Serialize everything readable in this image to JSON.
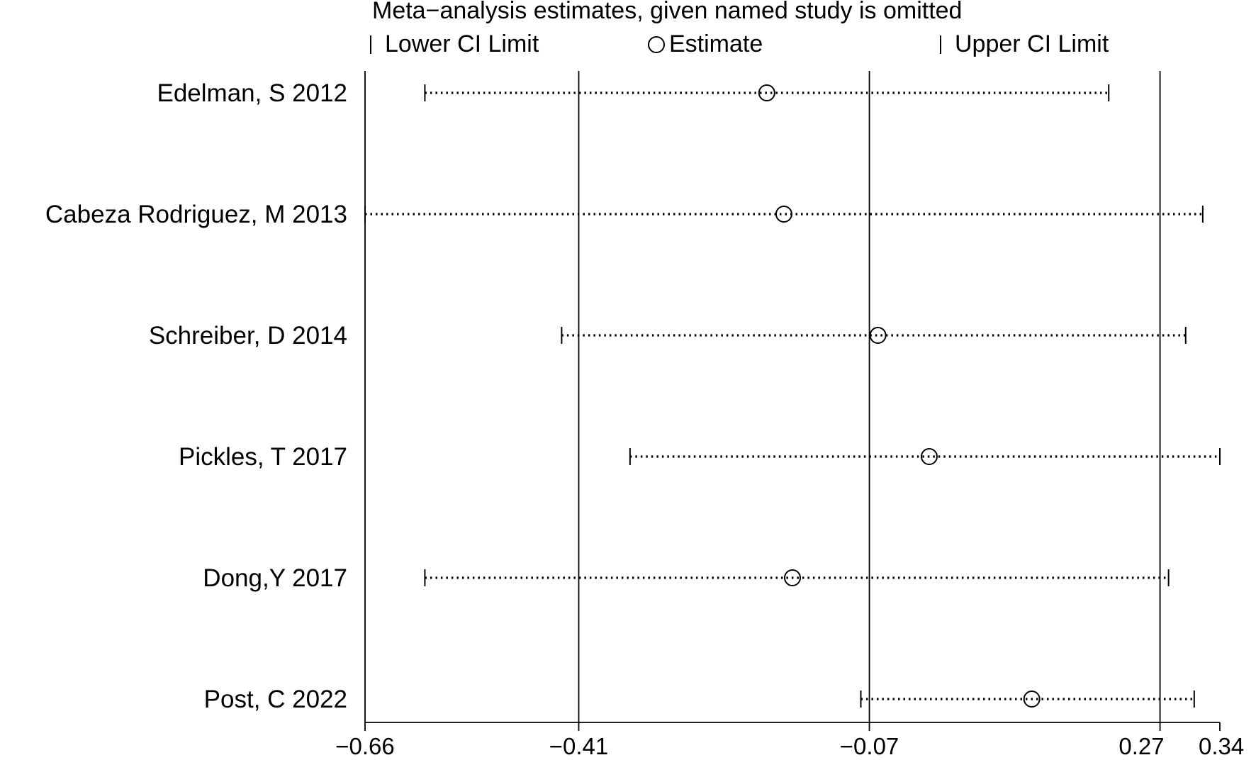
{
  "chart_data": {
    "type": "scatter",
    "title": "Meta−analysis estimates, given named study is omitted",
    "legend": {
      "placement": "top",
      "lower": "Lower CI Limit",
      "estimate": "Estimate",
      "upper": "Upper CI Limit"
    },
    "x_ticks": [
      {
        "value": -0.66,
        "label": "−0.66"
      },
      {
        "value": -0.41,
        "label": "−0.41"
      },
      {
        "value": -0.07,
        "label": "−0.07"
      },
      {
        "value": 0.27,
        "label": "0.27"
      },
      {
        "value": 0.34,
        "label": "0.34"
      }
    ],
    "reference_lines": [
      -0.66,
      -0.41,
      -0.07,
      0.27
    ],
    "xlim": [
      -0.66,
      0.34
    ],
    "studies": [
      {
        "name": "Edelman, S 2012",
        "lower": -0.59,
        "estimate": -0.19,
        "upper": 0.21
      },
      {
        "name": "Cabeza Rodriguez, M 2013",
        "lower": -0.66,
        "estimate": -0.17,
        "upper": 0.32
      },
      {
        "name": "Schreiber, D 2014",
        "lower": -0.43,
        "estimate": -0.06,
        "upper": 0.3
      },
      {
        "name": "Pickles, T 2017",
        "lower": -0.35,
        "estimate": 0.0,
        "upper": 0.34
      },
      {
        "name": "Dong,Y 2017",
        "lower": -0.59,
        "estimate": -0.16,
        "upper": 0.28
      },
      {
        "name": "Post, C 2022",
        "lower": -0.08,
        "estimate": 0.12,
        "upper": 0.31
      }
    ]
  }
}
